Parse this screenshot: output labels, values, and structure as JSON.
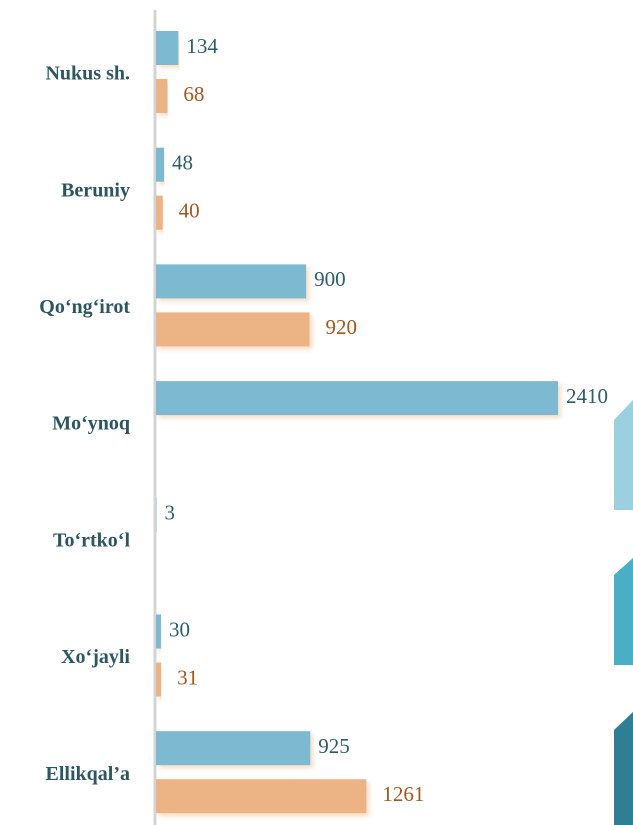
{
  "chart_data": {
    "type": "bar",
    "orientation": "horizontal",
    "categories": [
      "Nukus sh.",
      "Beruniy",
      "Qo‘ng‘irot",
      "Mo‘ynoq",
      "To‘rtko‘l",
      "Xo‘jayli",
      "Ellikqal’a"
    ],
    "series": [
      {
        "color": "#7db9d0",
        "label_color": "#2e5c6a",
        "values": [
          134,
          48,
          900,
          2410,
          3,
          30,
          925
        ]
      },
      {
        "color": "#ecb484",
        "label_color": "#a3561e",
        "values": [
          68,
          40,
          920,
          null,
          null,
          31,
          1261
        ]
      }
    ]
  }
}
